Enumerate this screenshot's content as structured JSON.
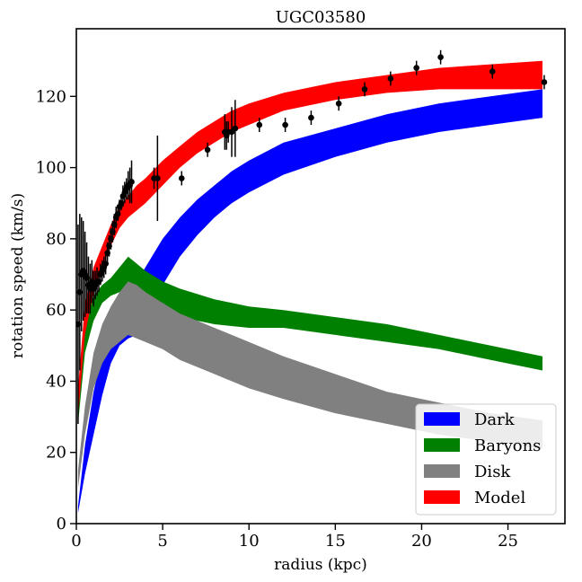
{
  "chart_data": {
    "type": "line",
    "title": "UGC03580",
    "xlabel": "radius (kpc)",
    "ylabel": "rotation speed (km/s)",
    "xlim": [
      0,
      28.3
    ],
    "ylim": [
      0,
      139
    ],
    "xticks": [
      0,
      5,
      10,
      15,
      20,
      25
    ],
    "yticks": [
      0,
      20,
      40,
      60,
      80,
      100,
      120
    ],
    "grid": false,
    "legend_position": "bottom-right",
    "bands": [
      {
        "name": "Dark",
        "color": "#0000ff",
        "x": [
          0.1,
          0.5,
          1,
          1.5,
          2,
          2.5,
          3,
          3.5,
          4,
          5,
          6,
          7,
          8,
          9,
          10,
          12,
          15,
          18,
          21,
          24,
          27
        ],
        "lower": [
          3,
          14,
          25,
          36,
          45,
          50,
          52,
          53,
          58,
          67,
          75,
          81,
          86,
          90,
          93,
          98,
          103,
          107,
          110,
          112,
          114
        ],
        "upper": [
          5,
          22,
          37,
          48,
          57,
          62,
          65,
          68,
          72,
          80,
          86,
          91,
          95,
          99,
          102,
          107,
          111,
          115,
          118,
          120,
          122
        ]
      },
      {
        "name": "Baryons",
        "color": "#008000",
        "x": [
          0.1,
          0.5,
          1,
          1.5,
          2,
          2.5,
          3,
          3.5,
          4,
          5,
          6,
          8,
          10,
          12,
          15,
          18,
          21,
          24,
          27
        ],
        "lower": [
          28,
          48,
          57,
          62,
          64,
          65,
          66,
          64,
          62,
          60,
          58,
          56,
          55,
          55,
          53,
          51,
          49,
          46,
          43
        ],
        "upper": [
          36,
          58,
          64,
          67,
          69,
          72,
          75,
          73,
          71,
          68,
          66,
          63,
          61,
          60,
          58,
          56,
          53,
          50,
          47
        ]
      },
      {
        "name": "Disk",
        "color": "#808080",
        "x": [
          0.1,
          0.5,
          1,
          1.5,
          2,
          2.5,
          3,
          3.5,
          4,
          5,
          6,
          8,
          10,
          12,
          15,
          18,
          21,
          24,
          27
        ],
        "lower": [
          10,
          25,
          38,
          45,
          49,
          51,
          53,
          52,
          51,
          49,
          46,
          42,
          38,
          35,
          31,
          28,
          25,
          23,
          21
        ],
        "upper": [
          15,
          33,
          48,
          56,
          61,
          65,
          68,
          67,
          65,
          62,
          59,
          55,
          51,
          47,
          42,
          37,
          34,
          31,
          29
        ]
      },
      {
        "name": "Model",
        "color": "#ff0000",
        "x": [
          0.1,
          0.5,
          1,
          1.5,
          2,
          2.5,
          3,
          3.5,
          4,
          5,
          6,
          7,
          8,
          9,
          10,
          12,
          15,
          18,
          21,
          24,
          27
        ],
        "lower": [
          30,
          53,
          65,
          72,
          78,
          83,
          86,
          88,
          90,
          95,
          100,
          104,
          107,
          110,
          112,
          116,
          119,
          121,
          122,
          122,
          122
        ],
        "upper": [
          38,
          62,
          72,
          78,
          84,
          89,
          92,
          95,
          97,
          102,
          106,
          110,
          113,
          116,
          118,
          121,
          124,
          126,
          128,
          129,
          130
        ]
      }
    ],
    "observations": {
      "name": "Data",
      "color": "#000000",
      "x": [
        0.1,
        0.2,
        0.3,
        0.4,
        0.5,
        0.6,
        0.7,
        0.8,
        0.9,
        1.0,
        1.1,
        1.2,
        1.3,
        1.4,
        1.5,
        1.6,
        1.7,
        1.8,
        1.9,
        2.0,
        2.1,
        2.2,
        2.3,
        2.4,
        2.5,
        2.6,
        2.7,
        2.8,
        2.9,
        3.0,
        3.1,
        3.2,
        4.5,
        4.7,
        6.1,
        7.6,
        8.6,
        8.7,
        8.8,
        9.0,
        9.2,
        10.6,
        12.1,
        13.6,
        15.2,
        16.7,
        18.2,
        19.7,
        21.1,
        24.1,
        27.1
      ],
      "y": [
        56,
        65,
        70,
        71,
        70,
        69,
        67,
        66,
        68,
        66,
        67,
        68,
        68,
        70,
        71,
        72,
        73,
        76,
        78,
        80,
        82,
        84,
        86,
        87,
        89,
        90,
        92,
        93,
        94,
        95,
        95,
        96,
        97,
        97,
        97,
        105,
        110,
        109,
        110,
        110,
        111,
        112,
        112,
        114,
        118,
        122,
        125,
        128,
        131,
        127,
        124
      ],
      "err": [
        28,
        22,
        16,
        14,
        12,
        10,
        8,
        7,
        6,
        5,
        4,
        4,
        3,
        3,
        3,
        3,
        3,
        3,
        3,
        3,
        3,
        3,
        3,
        2,
        2,
        2,
        3,
        3,
        3,
        4,
        5,
        6,
        3,
        12,
        2,
        2,
        5,
        4,
        3,
        7,
        8,
        2,
        2,
        2,
        2,
        2,
        2,
        2,
        2,
        2,
        2
      ]
    }
  }
}
